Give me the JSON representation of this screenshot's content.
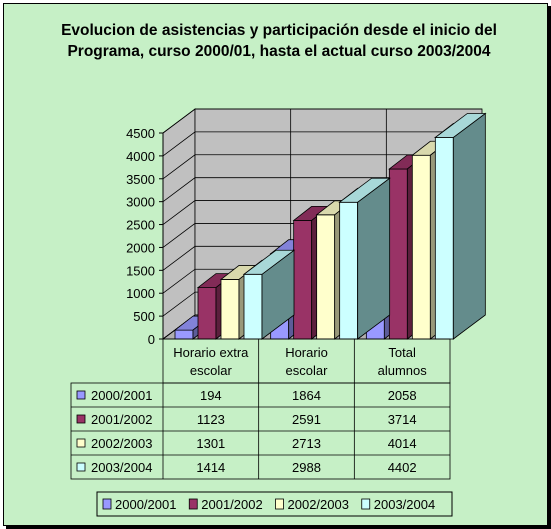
{
  "chart_data": {
    "type": "bar",
    "title": "Evolucion de asistencias y participación desde el inicio del Programa, curso 2000/01, hasta el actual curso 2003/2004",
    "categories": [
      "Horario extra escolar",
      "Horario escolar",
      "Total alumnos"
    ],
    "series": [
      {
        "name": "2000/2001",
        "values": [
          194,
          1864,
          2058
        ],
        "color": "#9999ff"
      },
      {
        "name": "2001/2002",
        "values": [
          1123,
          2591,
          3714
        ],
        "color": "#993366"
      },
      {
        "name": "2002/2003",
        "values": [
          1301,
          2713,
          4014
        ],
        "color": "#ffffcc"
      },
      {
        "name": "2003/2004",
        "values": [
          1414,
          2988,
          4402
        ],
        "color": "#ccffff"
      }
    ],
    "ylim": [
      0,
      4500
    ],
    "yticks": [
      0,
      500,
      1000,
      1500,
      2000,
      2500,
      3000,
      3500,
      4000,
      4500
    ],
    "grid": true,
    "legend": "bottom",
    "data_table": true,
    "three_d": true,
    "background": "#c6f0c6"
  }
}
